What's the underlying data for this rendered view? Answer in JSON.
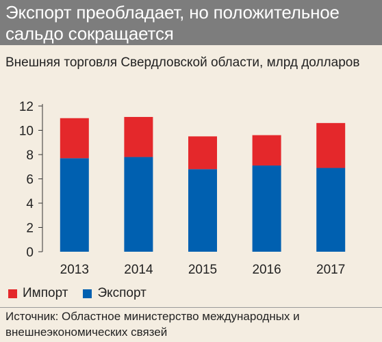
{
  "header": {
    "title": "Экспорт преобладает, но положительное сальдо сокращается"
  },
  "subtitle": "Внешняя торговля Свердловской области, млрд долларов",
  "legend": {
    "import_label": "Импорт",
    "export_label": "Экспорт"
  },
  "source": "Источник: Областное министерство международных и внешнеэкономических связей",
  "colors": {
    "import": "#e4282b",
    "export": "#0060b0",
    "background": "#f4ede1",
    "title_bar": "#7d7d7d"
  },
  "chart_data": {
    "type": "bar",
    "stacked": true,
    "categories": [
      "2013",
      "2014",
      "2015",
      "2016",
      "2017"
    ],
    "series": [
      {
        "name": "Экспорт",
        "values": [
          7.7,
          7.8,
          6.8,
          7.1,
          6.9
        ]
      },
      {
        "name": "Импорт",
        "values": [
          3.3,
          3.3,
          2.7,
          2.5,
          3.7
        ]
      }
    ],
    "ylim": [
      0,
      12
    ],
    "yticks": [
      0,
      2,
      4,
      6,
      8,
      10,
      12
    ],
    "grid": false,
    "legend_position": "bottom-left"
  }
}
